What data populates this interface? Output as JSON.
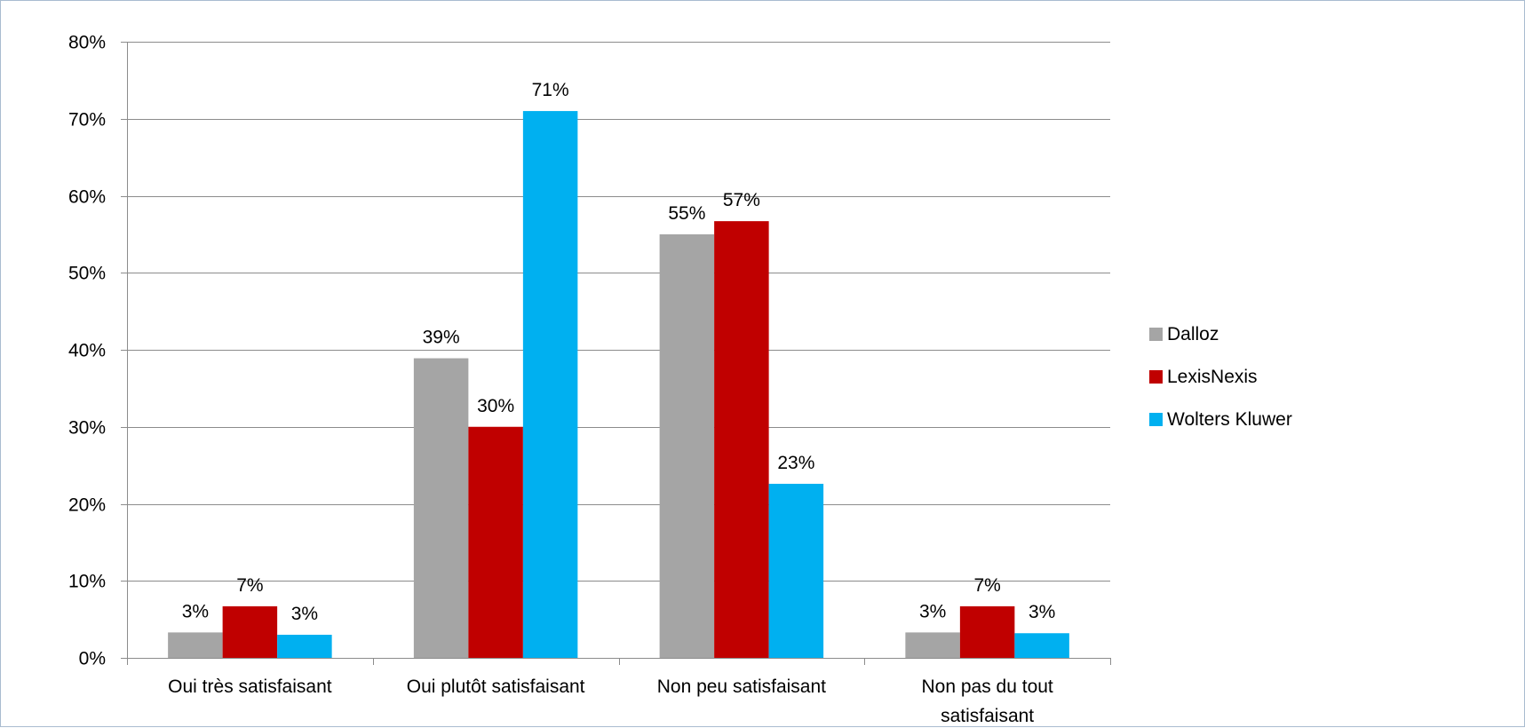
{
  "chart_data": {
    "type": "bar",
    "categories": [
      [
        "Oui très satisfaisant"
      ],
      [
        "Oui plutôt satisfaisant"
      ],
      [
        "Non peu satisfaisant"
      ],
      [
        "Non pas du tout",
        "satisfaisant"
      ]
    ],
    "series": [
      {
        "name": "Dalloz",
        "color": "#a5a5a5",
        "values": [
          3.3,
          38.9,
          55.0,
          3.3
        ],
        "labels": [
          "3%",
          "39%",
          "55%",
          "3%"
        ]
      },
      {
        "name": "LexisNexis",
        "color": "#c00000",
        "values": [
          6.7,
          30.0,
          56.7,
          6.7
        ],
        "labels": [
          "7%",
          "30%",
          "57%",
          "7%"
        ]
      },
      {
        "name": "Wolters Kluwer",
        "color": "#00b0f0",
        "values": [
          3.0,
          71.0,
          22.6,
          3.2
        ],
        "labels": [
          "3%",
          "71%",
          "23%",
          "3%"
        ]
      }
    ],
    "ylim": [
      0,
      80
    ],
    "yticks": [
      0,
      10,
      20,
      30,
      40,
      50,
      60,
      70,
      80
    ],
    "ytick_labels": [
      "0%",
      "10%",
      "20%",
      "30%",
      "40%",
      "50%",
      "60%",
      "70%",
      "80%"
    ],
    "grid": true,
    "legend_position": "right",
    "title": "",
    "xlabel": "",
    "ylabel": ""
  }
}
